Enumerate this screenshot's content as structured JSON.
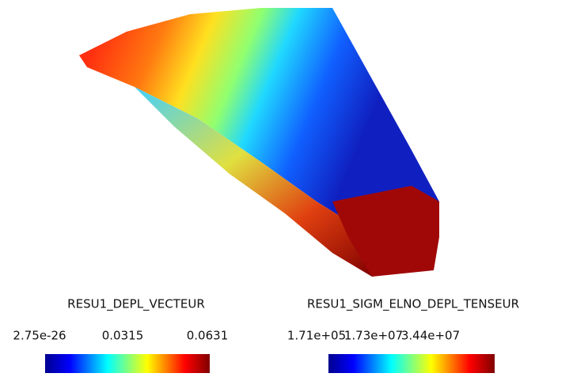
{
  "legends": [
    {
      "title": "RESU1_DEPL_VECTEUR",
      "ticks": [
        "2.75e-26",
        "0.0315",
        "0.0631"
      ]
    },
    {
      "title": "RESU1_SIGM_ELNO_DEPL_TENSEUR",
      "ticks": [
        "1.71e+05",
        "1.73e+07",
        "3.44e+07"
      ]
    }
  ]
}
